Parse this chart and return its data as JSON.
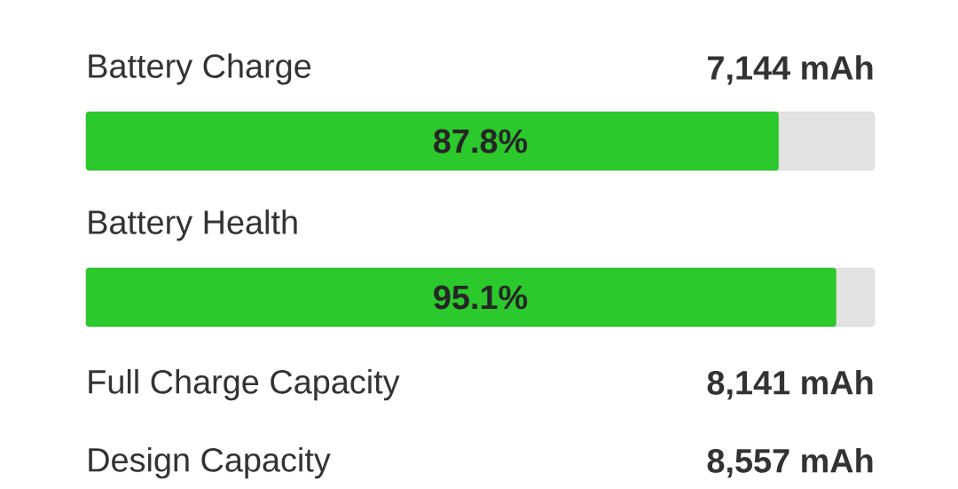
{
  "chart_data": {
    "type": "bar",
    "orientation": "horizontal",
    "categories": [
      "Battery Charge",
      "Battery Health"
    ],
    "values": [
      87.8,
      95.1
    ],
    "value_labels": [
      "87.8%",
      "95.1%"
    ],
    "color": "#2cc92c",
    "xlim": [
      0,
      100
    ],
    "annotations": [
      "7,144 mAh",
      "Full Charge Capacity",
      "8,141 mAh",
      "Design Capacity",
      "8,557 mAh"
    ]
  }
}
